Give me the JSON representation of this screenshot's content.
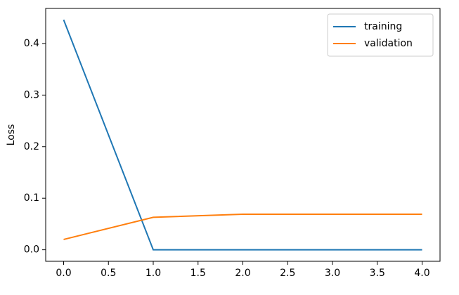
{
  "chart_data": {
    "type": "line",
    "ylabel": "Loss",
    "x": [
      0,
      1,
      2,
      3,
      4
    ],
    "series": [
      {
        "name": "training",
        "color": "#1f77b4",
        "values": [
          0.446,
          0.0,
          0.0,
          0.0,
          0.0
        ]
      },
      {
        "name": "validation",
        "color": "#ff7f0e",
        "values": [
          0.02,
          0.063,
          0.069,
          0.069,
          0.069
        ]
      }
    ],
    "xlim": [
      -0.2,
      4.2
    ],
    "ylim": [
      -0.0223,
      0.468
    ],
    "xticks": [
      {
        "value": 0,
        "label": "0.0"
      },
      {
        "value": 0.5,
        "label": "0.5"
      },
      {
        "value": 1,
        "label": "1.0"
      },
      {
        "value": 1.5,
        "label": "1.5"
      },
      {
        "value": 2,
        "label": "2.0"
      },
      {
        "value": 2.5,
        "label": "2.5"
      },
      {
        "value": 3,
        "label": "3.0"
      },
      {
        "value": 3.5,
        "label": "3.5"
      },
      {
        "value": 4,
        "label": "4.0"
      }
    ],
    "yticks": [
      {
        "value": 0,
        "label": "0.0"
      },
      {
        "value": 0.1,
        "label": "0.1"
      },
      {
        "value": 0.2,
        "label": "0.2"
      },
      {
        "value": 0.3,
        "label": "0.3"
      },
      {
        "value": 0.4,
        "label": "0.4"
      }
    ],
    "legend": "upper right",
    "grid": false
  }
}
